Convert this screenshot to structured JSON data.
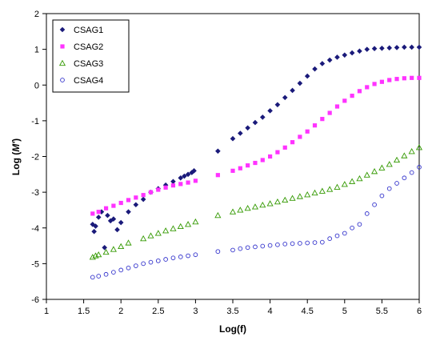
{
  "chart_data": {
    "type": "scatter",
    "title": "",
    "xlabel": "Log(f)",
    "ylabel_main": "Log (",
    "ylabel_var": "M'",
    "ylabel_end": ")",
    "xlim": [
      1,
      6
    ],
    "ylim": [
      -6,
      2
    ],
    "xticks": [
      1,
      1.5,
      2,
      2.5,
      3,
      3.5,
      4,
      4.5,
      5,
      5.5,
      6
    ],
    "xtick_labels": [
      "1",
      "1.5",
      "2",
      "2.5",
      "3",
      "3.5",
      "4",
      "4.5",
      "5",
      "5.5",
      "6"
    ],
    "yticks": [
      -6,
      -5,
      -4,
      -3,
      -2,
      -1,
      0,
      1,
      2
    ],
    "ytick_labels": [
      "-6",
      "-5",
      "-4",
      "-3",
      "-2",
      "-1",
      "0",
      "1",
      "2"
    ],
    "grid": false,
    "legend_position": "top-left",
    "series": [
      {
        "name": "CSAG1",
        "marker": "diamond",
        "color": "#1a1a7a",
        "points": [
          [
            1.62,
            -3.9
          ],
          [
            1.64,
            -4.1
          ],
          [
            1.66,
            -3.95
          ],
          [
            1.7,
            -3.7
          ],
          [
            1.74,
            -3.55
          ],
          [
            1.78,
            -4.55
          ],
          [
            1.82,
            -3.65
          ],
          [
            1.86,
            -3.8
          ],
          [
            1.9,
            -3.75
          ],
          [
            1.95,
            -4.05
          ],
          [
            2.0,
            -3.85
          ],
          [
            2.1,
            -3.55
          ],
          [
            2.2,
            -3.35
          ],
          [
            2.3,
            -3.2
          ],
          [
            2.4,
            -3.0
          ],
          [
            2.5,
            -2.9
          ],
          [
            2.6,
            -2.8
          ],
          [
            2.7,
            -2.7
          ],
          [
            2.8,
            -2.6
          ],
          [
            2.85,
            -2.55
          ],
          [
            2.9,
            -2.5
          ],
          [
            2.95,
            -2.45
          ],
          [
            2.98,
            -2.4
          ],
          [
            3.3,
            -1.85
          ],
          [
            3.5,
            -1.5
          ],
          [
            3.6,
            -1.35
          ],
          [
            3.7,
            -1.2
          ],
          [
            3.8,
            -1.05
          ],
          [
            3.9,
            -0.9
          ],
          [
            4.0,
            -0.72
          ],
          [
            4.1,
            -0.55
          ],
          [
            4.2,
            -0.35
          ],
          [
            4.3,
            -0.15
          ],
          [
            4.4,
            0.05
          ],
          [
            4.5,
            0.25
          ],
          [
            4.6,
            0.45
          ],
          [
            4.7,
            0.6
          ],
          [
            4.8,
            0.7
          ],
          [
            4.9,
            0.78
          ],
          [
            5.0,
            0.84
          ],
          [
            5.1,
            0.9
          ],
          [
            5.2,
            0.95
          ],
          [
            5.3,
            1.0
          ],
          [
            5.4,
            1.02
          ],
          [
            5.5,
            1.03
          ],
          [
            5.6,
            1.04
          ],
          [
            5.7,
            1.05
          ],
          [
            5.8,
            1.06
          ],
          [
            5.9,
            1.06
          ],
          [
            6.0,
            1.06
          ]
        ]
      },
      {
        "name": "CSAG2",
        "marker": "square",
        "color": "#ff33ff",
        "points": [
          [
            1.62,
            -3.6
          ],
          [
            1.7,
            -3.55
          ],
          [
            1.8,
            -3.45
          ],
          [
            1.9,
            -3.38
          ],
          [
            2.0,
            -3.3
          ],
          [
            2.1,
            -3.22
          ],
          [
            2.2,
            -3.15
          ],
          [
            2.3,
            -3.08
          ],
          [
            2.4,
            -3.0
          ],
          [
            2.5,
            -2.93
          ],
          [
            2.6,
            -2.87
          ],
          [
            2.7,
            -2.81
          ],
          [
            2.8,
            -2.77
          ],
          [
            2.9,
            -2.73
          ],
          [
            3.0,
            -2.68
          ],
          [
            3.3,
            -2.52
          ],
          [
            3.5,
            -2.4
          ],
          [
            3.6,
            -2.33
          ],
          [
            3.7,
            -2.25
          ],
          [
            3.8,
            -2.18
          ],
          [
            3.9,
            -2.1
          ],
          [
            4.0,
            -2.0
          ],
          [
            4.1,
            -1.88
          ],
          [
            4.2,
            -1.75
          ],
          [
            4.3,
            -1.6
          ],
          [
            4.4,
            -1.45
          ],
          [
            4.5,
            -1.3
          ],
          [
            4.6,
            -1.13
          ],
          [
            4.7,
            -0.95
          ],
          [
            4.8,
            -0.78
          ],
          [
            4.9,
            -0.6
          ],
          [
            5.0,
            -0.44
          ],
          [
            5.1,
            -0.3
          ],
          [
            5.2,
            -0.17
          ],
          [
            5.3,
            -0.06
          ],
          [
            5.4,
            0.03
          ],
          [
            5.5,
            0.09
          ],
          [
            5.6,
            0.14
          ],
          [
            5.7,
            0.17
          ],
          [
            5.8,
            0.19
          ],
          [
            5.9,
            0.2
          ],
          [
            6.0,
            0.2
          ]
        ]
      },
      {
        "name": "CSAG3",
        "marker": "triangle",
        "color": "#339900",
        "points": [
          [
            1.62,
            -4.82
          ],
          [
            1.66,
            -4.78
          ],
          [
            1.7,
            -4.75
          ],
          [
            1.8,
            -4.68
          ],
          [
            1.9,
            -4.6
          ],
          [
            2.0,
            -4.52
          ],
          [
            2.1,
            -4.42
          ],
          [
            2.3,
            -4.3
          ],
          [
            2.4,
            -4.22
          ],
          [
            2.5,
            -4.15
          ],
          [
            2.6,
            -4.08
          ],
          [
            2.7,
            -4.02
          ],
          [
            2.8,
            -3.96
          ],
          [
            2.9,
            -3.9
          ],
          [
            3.0,
            -3.83
          ],
          [
            3.3,
            -3.65
          ],
          [
            3.5,
            -3.55
          ],
          [
            3.6,
            -3.5
          ],
          [
            3.7,
            -3.45
          ],
          [
            3.8,
            -3.41
          ],
          [
            3.9,
            -3.36
          ],
          [
            4.0,
            -3.32
          ],
          [
            4.1,
            -3.27
          ],
          [
            4.2,
            -3.22
          ],
          [
            4.3,
            -3.17
          ],
          [
            4.4,
            -3.12
          ],
          [
            4.5,
            -3.07
          ],
          [
            4.6,
            -3.02
          ],
          [
            4.7,
            -2.97
          ],
          [
            4.8,
            -2.92
          ],
          [
            4.9,
            -2.86
          ],
          [
            5.0,
            -2.78
          ],
          [
            5.1,
            -2.7
          ],
          [
            5.2,
            -2.62
          ],
          [
            5.3,
            -2.52
          ],
          [
            5.4,
            -2.42
          ],
          [
            5.5,
            -2.32
          ],
          [
            5.6,
            -2.22
          ],
          [
            5.7,
            -2.1
          ],
          [
            5.8,
            -1.98
          ],
          [
            5.9,
            -1.86
          ],
          [
            6.0,
            -1.75
          ]
        ]
      },
      {
        "name": "CSAG4",
        "marker": "circle",
        "color": "#3333cc",
        "points": [
          [
            1.62,
            -5.38
          ],
          [
            1.7,
            -5.35
          ],
          [
            1.8,
            -5.3
          ],
          [
            1.9,
            -5.24
          ],
          [
            2.0,
            -5.18
          ],
          [
            2.1,
            -5.12
          ],
          [
            2.2,
            -5.06
          ],
          [
            2.3,
            -5.0
          ],
          [
            2.4,
            -4.96
          ],
          [
            2.5,
            -4.92
          ],
          [
            2.6,
            -4.88
          ],
          [
            2.7,
            -4.84
          ],
          [
            2.8,
            -4.81
          ],
          [
            2.9,
            -4.78
          ],
          [
            3.0,
            -4.75
          ],
          [
            3.3,
            -4.66
          ],
          [
            3.5,
            -4.62
          ],
          [
            3.6,
            -4.58
          ],
          [
            3.7,
            -4.55
          ],
          [
            3.8,
            -4.53
          ],
          [
            3.9,
            -4.51
          ],
          [
            4.0,
            -4.49
          ],
          [
            4.1,
            -4.47
          ],
          [
            4.2,
            -4.45
          ],
          [
            4.3,
            -4.44
          ],
          [
            4.4,
            -4.43
          ],
          [
            4.5,
            -4.42
          ],
          [
            4.6,
            -4.41
          ],
          [
            4.7,
            -4.4
          ],
          [
            4.8,
            -4.3
          ],
          [
            4.9,
            -4.22
          ],
          [
            5.0,
            -4.15
          ],
          [
            5.1,
            -4.0
          ],
          [
            5.2,
            -3.9
          ],
          [
            5.3,
            -3.6
          ],
          [
            5.4,
            -3.35
          ],
          [
            5.5,
            -3.1
          ],
          [
            5.6,
            -2.9
          ],
          [
            5.7,
            -2.75
          ],
          [
            5.8,
            -2.6
          ],
          [
            5.9,
            -2.45
          ],
          [
            6.0,
            -2.3
          ]
        ]
      }
    ]
  }
}
